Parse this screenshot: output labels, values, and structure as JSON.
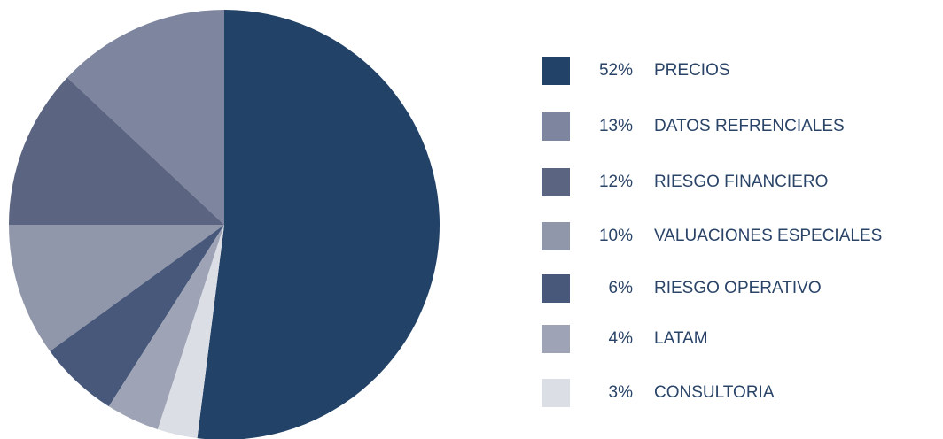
{
  "chart_data": {
    "type": "pie",
    "categories": [
      "PRECIOS",
      "DATOS REFRENCIALES",
      "RIESGO FINANCIERO",
      "VALUACIONES ESPECIALES",
      "RIESGO OPERATIVO",
      "LATAM",
      "CONSULTORIA"
    ],
    "values": [
      52,
      13,
      12,
      10,
      6,
      4,
      3
    ],
    "value_labels": [
      "52%",
      "13%",
      "12%",
      "10%",
      "6%",
      "4%",
      "3%"
    ],
    "colors": [
      "#234267",
      "#7e859e",
      "#5b6480",
      "#9197aa",
      "#47587a",
      "#9ea3b5",
      "#dcdee6"
    ],
    "legend": "right"
  }
}
